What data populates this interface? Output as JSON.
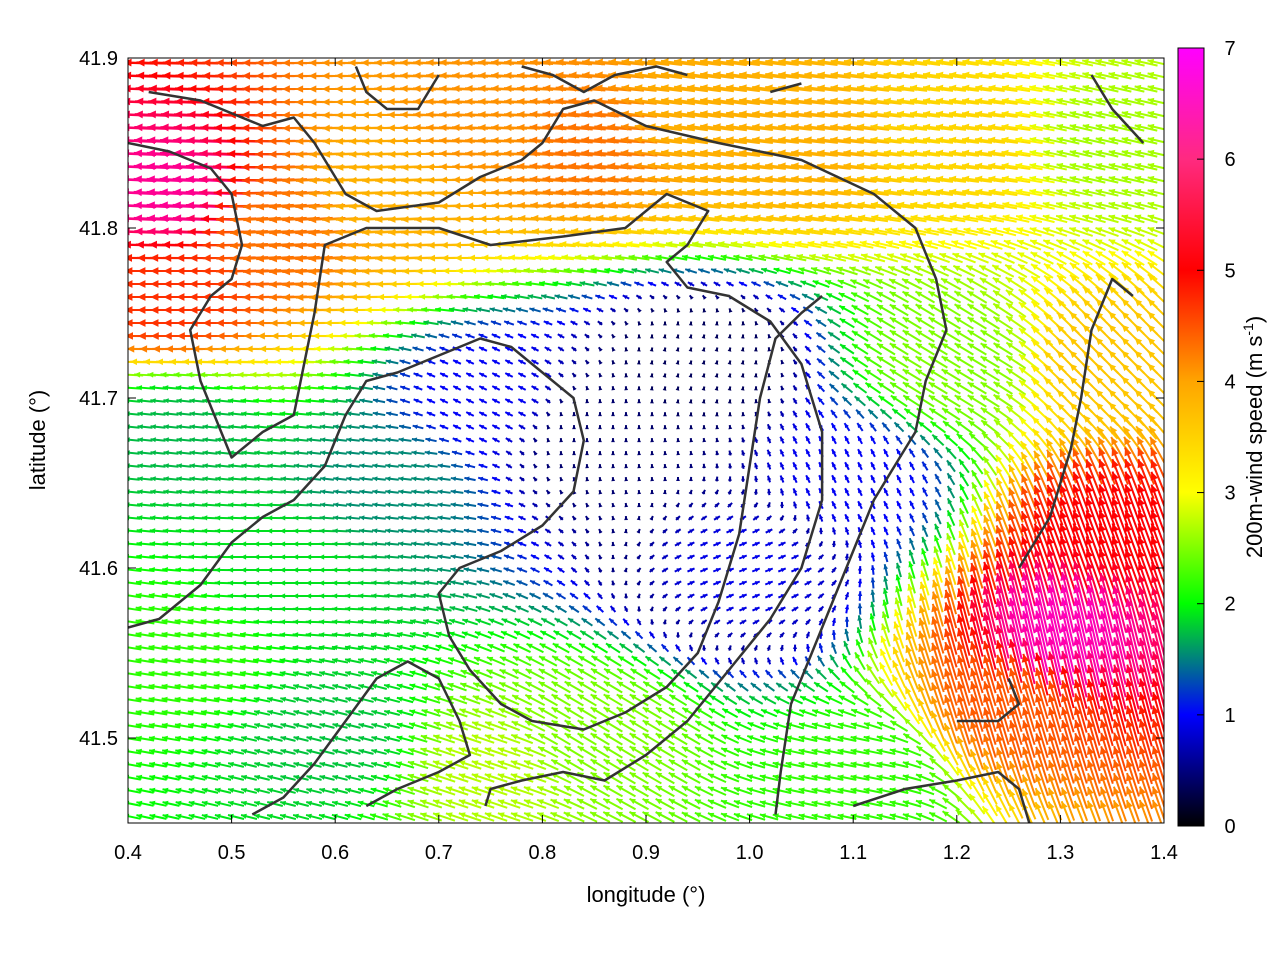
{
  "chart_data": {
    "type": "quiver",
    "xlabel": "longitude (°)",
    "ylabel": "latitude (°)",
    "xlim": [
      0.4,
      1.4
    ],
    "ylim": [
      41.45,
      41.9
    ],
    "xticks": [
      0.4,
      0.5,
      0.6,
      0.7,
      0.8,
      0.9,
      1.0,
      1.1,
      1.2,
      1.3,
      1.4
    ],
    "xtick_labels": [
      "0.4",
      "0.5",
      "0.6",
      "0.7",
      "0.8",
      "0.9",
      "1.0",
      "1.1",
      "1.2",
      "1.3",
      "1.4"
    ],
    "yticks": [
      41.5,
      41.6,
      41.7,
      41.8,
      41.9
    ],
    "ytick_labels": [
      "41.5",
      "41.6",
      "41.7",
      "41.8",
      "41.9"
    ],
    "grid": false,
    "colorbar": {
      "label": "200m-wind speed (m s",
      "label_sup": "-1",
      "label_end": ")",
      "range": [
        0,
        7
      ],
      "ticks": [
        0,
        1,
        2,
        3,
        4,
        5,
        6,
        7
      ],
      "tick_labels": [
        "0",
        "1",
        "2",
        "3",
        "4",
        "5",
        "6",
        "7"
      ],
      "palette": [
        "#000000",
        "#0000ff",
        "#00ff00",
        "#ffff00",
        "#ffa500",
        "#ff0000",
        "#ff00ff"
      ]
    },
    "wind_field_samples": [
      {
        "lon": 0.45,
        "lat": 41.82,
        "u": -6.5,
        "v": 0.3
      },
      {
        "lon": 0.45,
        "lat": 41.76,
        "u": -5.5,
        "v": 0.0
      },
      {
        "lon": 0.55,
        "lat": 41.8,
        "u": -5.0,
        "v": -0.3
      },
      {
        "lon": 0.65,
        "lat": 41.82,
        "u": -4.5,
        "v": -0.2
      },
      {
        "lon": 0.75,
        "lat": 41.86,
        "u": -4.8,
        "v": 0.2
      },
      {
        "lon": 0.85,
        "lat": 41.85,
        "u": -5.0,
        "v": 0.4
      },
      {
        "lon": 0.95,
        "lat": 41.86,
        "u": -4.5,
        "v": 0.6
      },
      {
        "lon": 1.05,
        "lat": 41.85,
        "u": -4.5,
        "v": 0.5
      },
      {
        "lon": 1.2,
        "lat": 41.85,
        "u": -4.0,
        "v": 0.5
      },
      {
        "lon": 1.35,
        "lat": 41.85,
        "u": -3.0,
        "v": 0.7
      },
      {
        "lon": 0.45,
        "lat": 41.68,
        "u": -2.0,
        "v": 0.2
      },
      {
        "lon": 0.45,
        "lat": 41.55,
        "u": -2.5,
        "v": 0.4
      },
      {
        "lon": 0.55,
        "lat": 41.6,
        "u": -2.2,
        "v": 0.0
      },
      {
        "lon": 0.65,
        "lat": 41.65,
        "u": -1.8,
        "v": 0.2
      },
      {
        "lon": 0.75,
        "lat": 41.7,
        "u": -1.0,
        "v": 0.5
      },
      {
        "lon": 0.85,
        "lat": 41.68,
        "u": 0.0,
        "v": 0.5
      },
      {
        "lon": 0.95,
        "lat": 41.72,
        "u": 0.1,
        "v": 0.4
      },
      {
        "lon": 1.0,
        "lat": 41.6,
        "u": 1.0,
        "v": 0.4
      },
      {
        "lon": 1.1,
        "lat": 41.65,
        "u": -0.5,
        "v": 1.0
      },
      {
        "lon": 1.2,
        "lat": 41.72,
        "u": -2.5,
        "v": 1.5
      },
      {
        "lon": 1.3,
        "lat": 41.56,
        "u": -1.5,
        "v": 6.5
      },
      {
        "lon": 1.35,
        "lat": 41.62,
        "u": -2.0,
        "v": 5.5
      },
      {
        "lon": 1.25,
        "lat": 41.52,
        "u": -1.5,
        "v": 5.0
      },
      {
        "lon": 1.35,
        "lat": 41.72,
        "u": -3.0,
        "v": 3.0
      },
      {
        "lon": 0.85,
        "lat": 41.5,
        "u": -2.5,
        "v": 1.5
      },
      {
        "lon": 0.75,
        "lat": 41.48,
        "u": -3.0,
        "v": 1.0
      },
      {
        "lon": 1.1,
        "lat": 41.48,
        "u": -2.5,
        "v": 0.5
      },
      {
        "lon": 0.6,
        "lat": 41.5,
        "u": -2.0,
        "v": 0.5
      }
    ],
    "contour_lines": [
      [
        [
          0.42,
          41.88
        ],
        [
          0.47,
          41.875
        ],
        [
          0.53,
          41.86
        ],
        [
          0.56,
          41.865
        ],
        [
          0.58,
          41.85
        ],
        [
          0.61,
          41.82
        ],
        [
          0.64,
          41.81
        ],
        [
          0.7,
          41.815
        ],
        [
          0.74,
          41.83
        ],
        [
          0.78,
          41.84
        ],
        [
          0.8,
          41.85
        ],
        [
          0.82,
          41.87
        ],
        [
          0.85,
          41.875
        ],
        [
          0.9,
          41.86
        ],
        [
          0.97,
          41.85
        ],
        [
          1.05,
          41.84
        ],
        [
          1.12,
          41.82
        ],
        [
          1.16,
          41.8
        ],
        [
          1.18,
          41.77
        ],
        [
          1.19,
          41.74
        ],
        [
          1.17,
          41.71
        ],
        [
          1.16,
          41.68
        ],
        [
          1.14,
          41.66
        ],
        [
          1.12,
          41.64
        ],
        [
          1.1,
          41.61
        ],
        [
          1.08,
          41.58
        ],
        [
          1.06,
          41.55
        ],
        [
          1.04,
          41.52
        ],
        [
          1.03,
          41.48
        ],
        [
          1.025,
          41.455
        ]
      ],
      [
        [
          0.4,
          41.85
        ],
        [
          0.44,
          41.845
        ],
        [
          0.48,
          41.835
        ],
        [
          0.5,
          41.82
        ],
        [
          0.51,
          41.79
        ],
        [
          0.5,
          41.77
        ],
        [
          0.48,
          41.76
        ],
        [
          0.46,
          41.74
        ],
        [
          0.47,
          41.71
        ],
        [
          0.49,
          41.68
        ],
        [
          0.5,
          41.665
        ],
        [
          0.53,
          41.68
        ],
        [
          0.56,
          41.69
        ],
        [
          0.57,
          41.72
        ],
        [
          0.58,
          41.75
        ],
        [
          0.59,
          41.79
        ],
        [
          0.63,
          41.8
        ],
        [
          0.7,
          41.8
        ],
        [
          0.75,
          41.79
        ],
        [
          0.82,
          41.795
        ],
        [
          0.88,
          41.8
        ],
        [
          0.92,
          41.82
        ],
        [
          0.96,
          41.81
        ],
        [
          0.94,
          41.79
        ],
        [
          0.92,
          41.78
        ],
        [
          0.94,
          41.765
        ],
        [
          0.98,
          41.76
        ],
        [
          1.02,
          41.745
        ],
        [
          1.05,
          41.72
        ],
        [
          1.07,
          41.68
        ],
        [
          1.07,
          41.64
        ],
        [
          1.05,
          41.6
        ],
        [
          1.02,
          41.57
        ],
        [
          0.98,
          41.54
        ],
        [
          0.94,
          41.51
        ],
        [
          0.9,
          41.49
        ],
        [
          0.86,
          41.475
        ],
        [
          0.82,
          41.48
        ],
        [
          0.78,
          41.475
        ],
        [
          0.75,
          41.47
        ],
        [
          0.745,
          41.46
        ]
      ],
      [
        [
          0.4,
          41.565
        ],
        [
          0.43,
          41.57
        ],
        [
          0.47,
          41.59
        ],
        [
          0.5,
          41.615
        ],
        [
          0.53,
          41.63
        ],
        [
          0.56,
          41.64
        ],
        [
          0.59,
          41.66
        ],
        [
          0.61,
          41.69
        ],
        [
          0.63,
          41.71
        ],
        [
          0.66,
          41.715
        ],
        [
          0.7,
          41.725
        ],
        [
          0.74,
          41.735
        ],
        [
          0.77,
          41.73
        ],
        [
          0.8,
          41.715
        ],
        [
          0.83,
          41.7
        ],
        [
          0.84,
          41.675
        ],
        [
          0.83,
          41.645
        ],
        [
          0.8,
          41.625
        ],
        [
          0.76,
          41.61
        ],
        [
          0.72,
          41.6
        ],
        [
          0.7,
          41.585
        ],
        [
          0.71,
          41.56
        ],
        [
          0.73,
          41.54
        ],
        [
          0.76,
          41.52
        ],
        [
          0.79,
          41.51
        ],
        [
          0.84,
          41.505
        ],
        [
          0.88,
          41.515
        ],
        [
          0.92,
          41.53
        ],
        [
          0.95,
          41.55
        ],
        [
          0.97,
          41.58
        ],
        [
          0.99,
          41.62
        ],
        [
          1.0,
          41.66
        ],
        [
          1.01,
          41.7
        ],
        [
          1.025,
          41.735
        ],
        [
          1.05,
          41.75
        ],
        [
          1.07,
          41.76
        ]
      ],
      [
        [
          0.52,
          41.455
        ],
        [
          0.55,
          41.465
        ],
        [
          0.58,
          41.485
        ],
        [
          0.61,
          41.51
        ],
        [
          0.64,
          41.535
        ],
        [
          0.67,
          41.545
        ],
        [
          0.7,
          41.535
        ],
        [
          0.72,
          41.51
        ],
        [
          0.73,
          41.49
        ],
        [
          0.7,
          41.48
        ],
        [
          0.66,
          41.47
        ],
        [
          0.63,
          41.46
        ]
      ],
      [
        [
          1.1,
          41.46
        ],
        [
          1.15,
          41.47
        ],
        [
          1.2,
          41.475
        ],
        [
          1.24,
          41.48
        ],
        [
          1.26,
          41.47
        ],
        [
          1.27,
          41.45
        ]
      ],
      [
        [
          1.2,
          41.51
        ],
        [
          1.24,
          41.51
        ],
        [
          1.26,
          41.52
        ],
        [
          1.25,
          41.535
        ]
      ],
      [
        [
          1.26,
          41.6
        ],
        [
          1.29,
          41.63
        ],
        [
          1.31,
          41.67
        ],
        [
          1.32,
          41.7
        ],
        [
          1.33,
          41.74
        ],
        [
          1.35,
          41.77
        ],
        [
          1.37,
          41.76
        ]
      ],
      [
        [
          1.33,
          41.89
        ],
        [
          1.35,
          41.87
        ],
        [
          1.38,
          41.85
        ]
      ],
      [
        [
          0.62,
          41.895
        ],
        [
          0.63,
          41.88
        ],
        [
          0.65,
          41.87
        ],
        [
          0.68,
          41.87
        ],
        [
          0.69,
          41.88
        ],
        [
          0.7,
          41.89
        ]
      ],
      [
        [
          0.78,
          41.895
        ],
        [
          0.81,
          41.89
        ],
        [
          0.84,
          41.88
        ],
        [
          0.87,
          41.89
        ],
        [
          0.91,
          41.895
        ],
        [
          0.94,
          41.89
        ]
      ],
      [
        [
          1.02,
          41.88
        ],
        [
          1.05,
          41.885
        ]
      ]
    ]
  }
}
